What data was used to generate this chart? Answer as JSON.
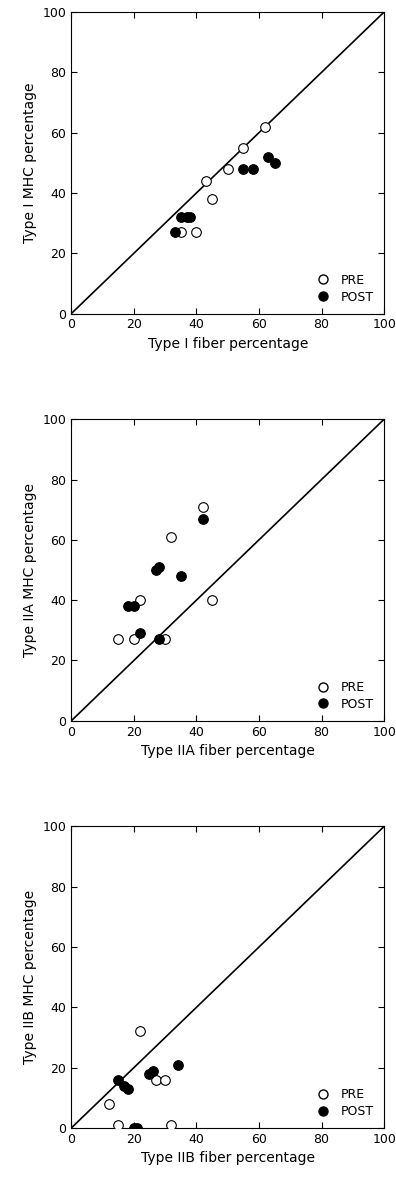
{
  "panel1": {
    "xlabel": "Type I fiber percentage",
    "ylabel": "Type I MHC percentage",
    "pre_x": [
      35,
      40,
      43,
      45,
      50,
      55,
      62
    ],
    "pre_y": [
      27,
      27,
      44,
      38,
      48,
      55,
      62
    ],
    "post_x": [
      33,
      35,
      37,
      38,
      55,
      58,
      63,
      65
    ],
    "post_y": [
      27,
      32,
      32,
      32,
      48,
      48,
      52,
      50
    ]
  },
  "panel2": {
    "xlabel": "Type IIA fiber percentage",
    "ylabel": "Type IIA MHC percentage",
    "pre_x": [
      15,
      20,
      22,
      30,
      32,
      42,
      45
    ],
    "pre_y": [
      27,
      27,
      40,
      27,
      61,
      71,
      40
    ],
    "post_x": [
      18,
      20,
      22,
      27,
      28,
      28,
      35,
      42
    ],
    "post_y": [
      38,
      38,
      29,
      50,
      51,
      27,
      48,
      67
    ]
  },
  "panel3": {
    "xlabel": "Type IIB fiber percentage",
    "ylabel": "Type IIB MHC percentage",
    "pre_x": [
      12,
      15,
      22,
      27,
      30,
      32
    ],
    "pre_y": [
      8,
      1,
      32,
      16,
      16,
      1
    ],
    "post_x": [
      15,
      17,
      18,
      20,
      21,
      25,
      26,
      34
    ],
    "post_y": [
      16,
      14,
      13,
      0,
      0,
      18,
      19,
      21
    ]
  },
  "xlim": [
    0,
    100
  ],
  "ylim": [
    0,
    100
  ],
  "xticks": [
    0,
    20,
    40,
    60,
    80,
    100
  ],
  "yticks": [
    0,
    20,
    40,
    60,
    80,
    100
  ],
  "marker_size": 48,
  "marker_lw": 0.8,
  "pre_color": "white",
  "post_color": "black",
  "edge_color": "black",
  "line_color": "black",
  "line_width": 1.2,
  "background": "white",
  "legend_pre": "PRE",
  "legend_post": "POST",
  "tick_labelsize": 9,
  "axis_labelsize": 10,
  "legend_fontsize": 9,
  "figsize": [
    3.96,
    12.0
  ],
  "dpi": 100
}
